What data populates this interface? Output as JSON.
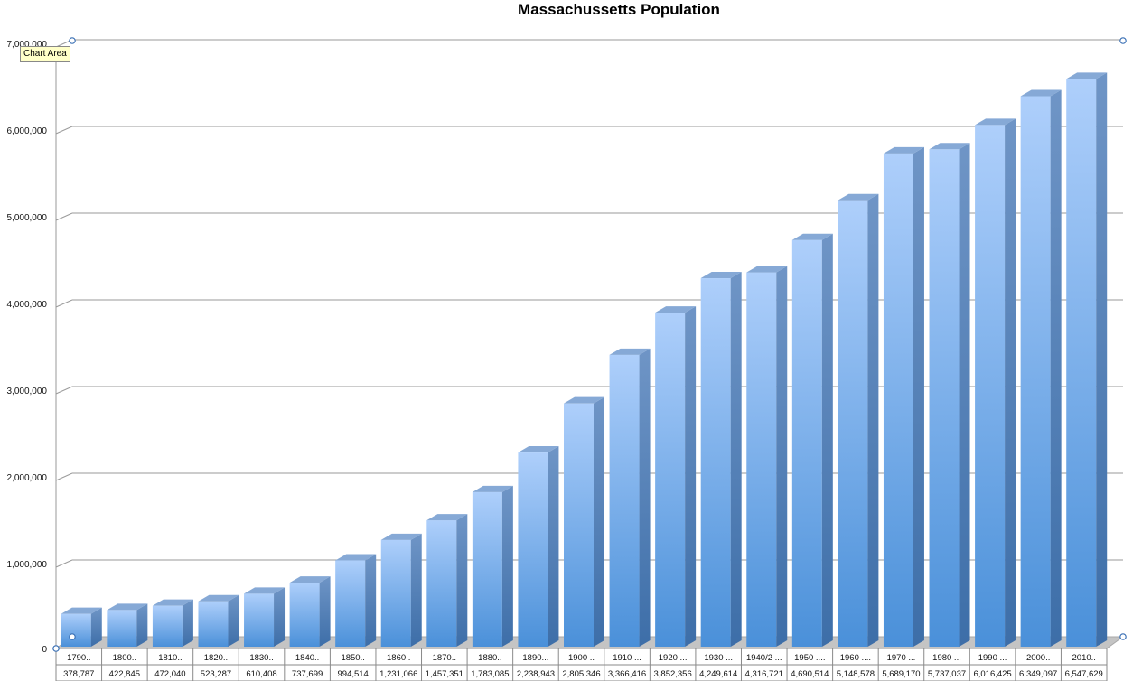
{
  "tooltip": "Chart Area",
  "chart_data": {
    "type": "bar",
    "title": "Massachussetts  Population",
    "xlabel": "",
    "ylabel": "",
    "ylim": [
      0,
      7000000
    ],
    "yticks": [
      "0",
      "1,000,000",
      "2,000,000",
      "3,000,000",
      "4,000,000",
      "5,000,000",
      "6,000,000",
      "7,000,000"
    ],
    "grid": true,
    "legend": "none",
    "categories": [
      "1790..",
      "1800..",
      "1810..",
      "1820..",
      "1830..",
      "1840..",
      "1850..",
      "1860..",
      "1870..",
      "1880..",
      "1890...",
      "1900 ..",
      "1910 ...",
      "1920 ...",
      "1930 ...",
      "1940/2 ...",
      "1950 ....",
      "1960 ....",
      "1970 ...",
      "1980 ...",
      "1990 ...",
      "2000..",
      "2010.."
    ],
    "values": [
      378787,
      422845,
      472040,
      523287,
      610408,
      737699,
      994514,
      1231066,
      1457351,
      1783085,
      2238943,
      2805346,
      3366416,
      3852356,
      4249614,
      4316721,
      4690514,
      5148578,
      5689170,
      5737037,
      6016425,
      6349097,
      6547629
    ],
    "value_labels": [
      "378,787",
      "422,845",
      "472,040",
      "523,287",
      "610,408",
      "737,699",
      "994,514",
      "1,231,066",
      "1,457,351",
      "1,783,085",
      "2,238,943",
      "2,805,346",
      "3,366,416",
      "3,852,356",
      "4,249,614",
      "4,316,721",
      "4,690,514",
      "5,148,578",
      "5,689,170",
      "5,737,037",
      "6,016,425",
      "6,349,097",
      "6,547,629"
    ],
    "colors": {
      "bar_front_top": "#aecffb",
      "bar_front_bottom": "#4a90d9",
      "bar_side": "#4f7fb6",
      "bar_top": "#86a9d6",
      "grid": "#9a9a9a",
      "floor": "#c0c0c0"
    }
  }
}
